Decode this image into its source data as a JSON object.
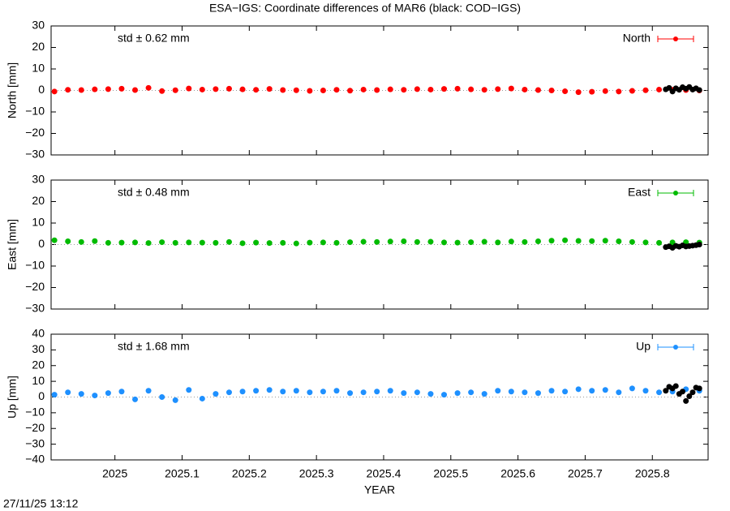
{
  "title": "ESA−IGS: Coordinate differences of MAR6 (black: COD−IGS)",
  "xlabel": "YEAR",
  "timestamp": "27/11/25 13:12",
  "chart_data": [
    {
      "type": "scatter",
      "ylabel": "North [mm]",
      "annotation": "std ± 0.62 mm",
      "annotation_color": "#ff0000",
      "xlim": [
        2024.905,
        2025.883
      ],
      "xticks": [
        2025,
        2025.1,
        2025.2,
        2025.3,
        2025.4,
        2025.5,
        2025.6,
        2025.7,
        2025.8
      ],
      "ylim": [
        -30,
        30
      ],
      "yticks": [
        {
          "value": -30,
          "label": "−30"
        },
        {
          "value": -20,
          "label": "−20"
        },
        {
          "value": -10,
          "label": "−10"
        },
        0,
        10,
        20,
        30
      ],
      "series": [
        {
          "name": "North",
          "color": "#ff0000",
          "x": [
            2024.91,
            2024.93,
            2024.95,
            2024.97,
            2024.99,
            2025.01,
            2025.03,
            2025.05,
            2025.07,
            2025.09,
            2025.11,
            2025.13,
            2025.15,
            2025.17,
            2025.19,
            2025.21,
            2025.23,
            2025.25,
            2025.27,
            2025.29,
            2025.31,
            2025.33,
            2025.35,
            2025.37,
            2025.39,
            2025.41,
            2025.43,
            2025.45,
            2025.47,
            2025.49,
            2025.51,
            2025.53,
            2025.55,
            2025.57,
            2025.59,
            2025.61,
            2025.63,
            2025.65,
            2025.67,
            2025.69,
            2025.71,
            2025.73,
            2025.75,
            2025.77,
            2025.79,
            2025.81,
            2025.83,
            2025.85,
            2025.87
          ],
          "values": [
            -0.5,
            0.3,
            0.2,
            0.5,
            0.6,
            0.8,
            0.2,
            1.2,
            -0.3,
            0.1,
            0.9,
            0.4,
            0.6,
            0.8,
            0.5,
            0.3,
            0.7,
            0.2,
            0.1,
            -0.2,
            0.0,
            0.3,
            -0.1,
            0.4,
            0.2,
            0.5,
            0.3,
            0.6,
            0.4,
            0.7,
            0.8,
            0.5,
            0.3,
            0.6,
            0.9,
            0.4,
            0.2,
            0.0,
            -0.4,
            -0.8,
            -0.6,
            -0.3,
            -0.5,
            -0.2,
            0.1,
            0.4,
            0.3,
            0.2,
            0.0
          ]
        },
        {
          "color": "#000000",
          "x": [
            2025.82,
            2025.825,
            2025.83,
            2025.835,
            2025.84,
            2025.845,
            2025.85,
            2025.855,
            2025.86,
            2025.865,
            2025.87
          ],
          "values": [
            0.5,
            1.2,
            -0.5,
            1.0,
            0.3,
            1.5,
            0.8,
            1.6,
            0.4,
            1.0,
            0.2
          ]
        }
      ]
    },
    {
      "type": "scatter",
      "ylabel": "East [mm]",
      "annotation": "std ± 0.48 mm",
      "annotation_color": "#00bb00",
      "xlim": [
        2024.905,
        2025.883
      ],
      "xticks": [
        2025,
        2025.1,
        2025.2,
        2025.3,
        2025.4,
        2025.5,
        2025.6,
        2025.7,
        2025.8
      ],
      "ylim": [
        -30,
        30
      ],
      "yticks": [
        {
          "value": -30,
          "label": "−30"
        },
        {
          "value": -20,
          "label": "−20"
        },
        {
          "value": -10,
          "label": "−10"
        },
        0,
        10,
        20,
        30
      ],
      "series": [
        {
          "name": "East",
          "color": "#00bb00",
          "x": [
            2024.91,
            2024.93,
            2024.95,
            2024.97,
            2024.99,
            2025.01,
            2025.03,
            2025.05,
            2025.07,
            2025.09,
            2025.11,
            2025.13,
            2025.15,
            2025.17,
            2025.19,
            2025.21,
            2025.23,
            2025.25,
            2025.27,
            2025.29,
            2025.31,
            2025.33,
            2025.35,
            2025.37,
            2025.39,
            2025.41,
            2025.43,
            2025.45,
            2025.47,
            2025.49,
            2025.51,
            2025.53,
            2025.55,
            2025.57,
            2025.59,
            2025.61,
            2025.63,
            2025.65,
            2025.67,
            2025.69,
            2025.71,
            2025.73,
            2025.75,
            2025.77,
            2025.79,
            2025.81,
            2025.83,
            2025.85,
            2025.87
          ],
          "values": [
            2.0,
            1.5,
            1.2,
            1.6,
            0.8,
            0.9,
            1.0,
            0.7,
            1.1,
            0.8,
            1.0,
            0.9,
            0.8,
            1.2,
            0.6,
            0.9,
            0.7,
            0.8,
            0.5,
            0.9,
            1.0,
            0.8,
            1.1,
            1.3,
            1.2,
            1.4,
            1.5,
            1.2,
            1.3,
            1.0,
            0.9,
            1.1,
            1.3,
            1.0,
            1.4,
            1.2,
            1.5,
            1.8,
            2.0,
            1.7,
            1.6,
            1.8,
            1.5,
            1.2,
            1.0,
            0.8,
            1.0,
            1.1,
            0.9
          ]
        },
        {
          "color": "#000000",
          "x": [
            2025.82,
            2025.825,
            2025.83,
            2025.835,
            2025.84,
            2025.845,
            2025.85,
            2025.855,
            2025.86,
            2025.865,
            2025.87
          ],
          "values": [
            -1.2,
            -0.8,
            -1.5,
            -0.6,
            -1.0,
            -0.4,
            -0.9,
            -0.7,
            -0.5,
            -0.3,
            0.0
          ]
        }
      ]
    },
    {
      "type": "scatter",
      "ylabel": "Up [mm]",
      "annotation": "std ± 1.68 mm",
      "annotation_color": "#1e90ff",
      "xlim": [
        2024.905,
        2025.883
      ],
      "xticks": [
        2025,
        2025.1,
        2025.2,
        2025.3,
        2025.4,
        2025.5,
        2025.6,
        2025.7,
        2025.8
      ],
      "ylim": [
        -40,
        40
      ],
      "yticks": [
        {
          "value": -40,
          "label": "−40"
        },
        {
          "value": -30,
          "label": "−30"
        },
        {
          "value": -20,
          "label": "−20"
        },
        {
          "value": -10,
          "label": "−10"
        },
        0,
        10,
        20,
        30,
        40
      ],
      "series": [
        {
          "name": "Up",
          "color": "#1e90ff",
          "x": [
            2024.91,
            2024.93,
            2024.95,
            2024.97,
            2024.99,
            2025.01,
            2025.03,
            2025.05,
            2025.07,
            2025.09,
            2025.11,
            2025.13,
            2025.15,
            2025.17,
            2025.19,
            2025.21,
            2025.23,
            2025.25,
            2025.27,
            2025.29,
            2025.31,
            2025.33,
            2025.35,
            2025.37,
            2025.39,
            2025.41,
            2025.43,
            2025.45,
            2025.47,
            2025.49,
            2025.51,
            2025.53,
            2025.55,
            2025.57,
            2025.59,
            2025.61,
            2025.63,
            2025.65,
            2025.67,
            2025.69,
            2025.71,
            2025.73,
            2025.75,
            2025.77,
            2025.79,
            2025.81,
            2025.83,
            2025.85,
            2025.87
          ],
          "values": [
            1.5,
            3.0,
            2.0,
            1.0,
            2.5,
            3.5,
            -1.5,
            4.0,
            0.0,
            -2.0,
            4.5,
            -1.0,
            2.0,
            3.0,
            3.5,
            4.0,
            4.5,
            3.5,
            4.0,
            3.0,
            3.5,
            4.0,
            2.5,
            3.0,
            3.5,
            4.0,
            2.5,
            3.0,
            2.0,
            1.5,
            2.5,
            3.0,
            2.0,
            4.0,
            3.5,
            3.0,
            2.5,
            4.0,
            3.5,
            5.0,
            4.0,
            4.5,
            3.0,
            5.5,
            4.0,
            3.0,
            3.5,
            5.0,
            4.0
          ]
        },
        {
          "color": "#000000",
          "x": [
            2025.82,
            2025.825,
            2025.83,
            2025.835,
            2025.84,
            2025.845,
            2025.85,
            2025.855,
            2025.86,
            2025.865,
            2025.87
          ],
          "values": [
            4.0,
            6.5,
            5.5,
            7.0,
            2.0,
            3.5,
            -2.5,
            0.5,
            3.0,
            6.0,
            5.5
          ]
        }
      ]
    }
  ]
}
